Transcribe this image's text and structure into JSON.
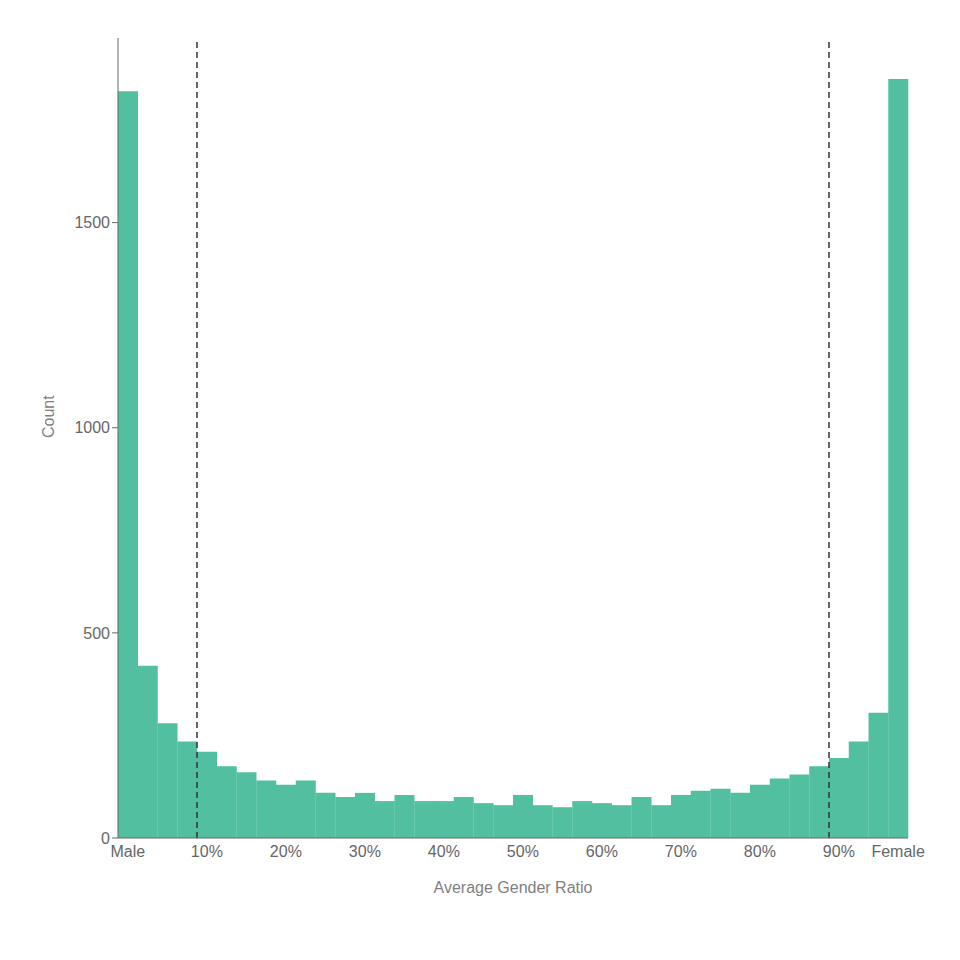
{
  "chart_data": {
    "type": "bar",
    "categories": [
      "Male",
      null,
      null,
      null,
      "10%",
      null,
      null,
      null,
      "20%",
      null,
      null,
      null,
      "30%",
      null,
      null,
      null,
      "40%",
      null,
      null,
      null,
      "50%",
      null,
      null,
      null,
      "60%",
      null,
      null,
      null,
      "70%",
      null,
      null,
      null,
      "80%",
      null,
      null,
      null,
      "90%",
      null,
      null,
      "Female"
    ],
    "values": [
      1820,
      420,
      280,
      235,
      210,
      175,
      160,
      140,
      130,
      140,
      110,
      100,
      110,
      90,
      105,
      90,
      90,
      100,
      85,
      80,
      105,
      80,
      75,
      90,
      85,
      80,
      100,
      80,
      105,
      115,
      120,
      110,
      130,
      145,
      155,
      175,
      195,
      235,
      305,
      1850
    ],
    "color": "#52c0a0",
    "xlabel": "Average Gender Ratio",
    "ylabel": "Count",
    "ylim": [
      0,
      1950
    ],
    "yticks": [
      0,
      500,
      1000,
      1500
    ],
    "grid": false,
    "vlines": [
      "10%",
      "90%"
    ]
  }
}
